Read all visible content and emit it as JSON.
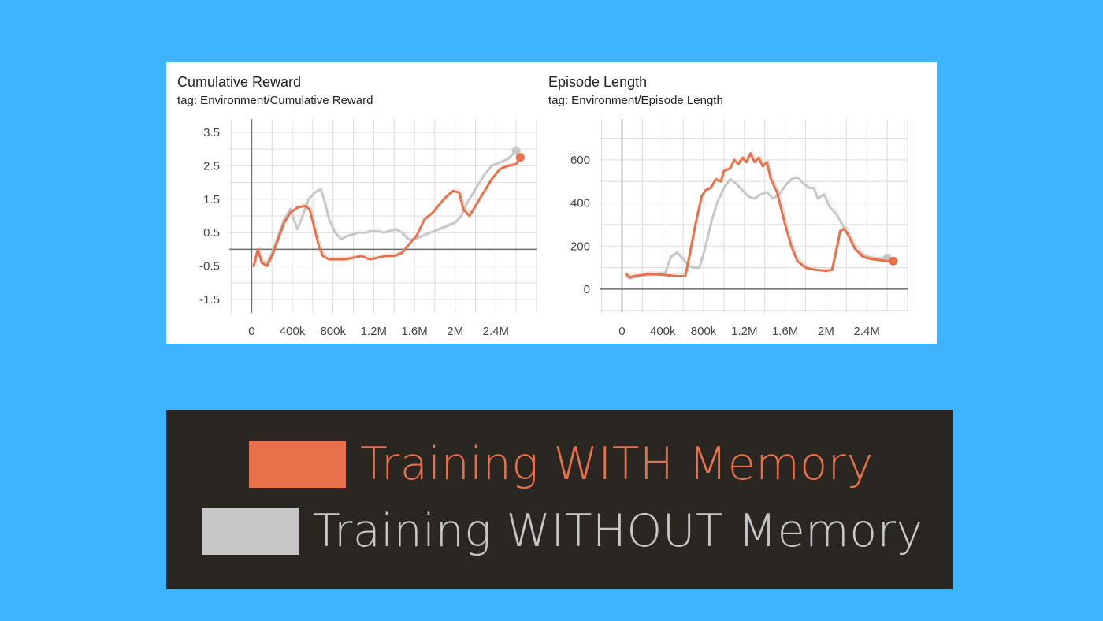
{
  "colors": {
    "background": "#3db4fd",
    "with_memory": "#e8704a",
    "without_memory": "#c7c7c7",
    "legend_bg": "#2a2723"
  },
  "chart_data": [
    {
      "type": "line",
      "title": "Cumulative Reward",
      "subtitle": "tag: Environment/Cumulative Reward",
      "xlabel": "",
      "ylabel": "",
      "xlim": [
        -220000,
        2800000
      ],
      "ylim": [
        -1.9,
        3.9
      ],
      "x_ticks": [
        0,
        400000,
        800000,
        1200000,
        1600000,
        2000000,
        2400000
      ],
      "x_tick_labels": [
        "0",
        "400k",
        "800k",
        "1.2M",
        "1.6M",
        "2M",
        "2.4M"
      ],
      "y_ticks": [
        3.5,
        2.5,
        1.5,
        0.5,
        -0.5,
        -1.5
      ],
      "y_tick_labels": [
        "3.5",
        "2.5",
        "1.5",
        "0.5",
        "-0.5",
        "-1.5"
      ],
      "grid": true,
      "series": [
        {
          "key": "with_memory",
          "x": [
            20000,
            60000,
            100000,
            150000,
            200000,
            260000,
            320000,
            380000,
            450000,
            520000,
            570000,
            620000,
            660000,
            700000,
            760000,
            840000,
            920000,
            1000000,
            1080000,
            1160000,
            1240000,
            1320000,
            1400000,
            1480000,
            1560000,
            1620000,
            1700000,
            1780000,
            1860000,
            1920000,
            1980000,
            2040000,
            2080000,
            2140000,
            2200000,
            2280000,
            2360000,
            2440000,
            2520000,
            2600000,
            2640000
          ],
          "y": [
            -0.5,
            0.0,
            -0.4,
            -0.5,
            -0.2,
            0.3,
            0.8,
            1.1,
            1.25,
            1.3,
            1.2,
            0.6,
            0.1,
            -0.2,
            -0.3,
            -0.3,
            -0.3,
            -0.25,
            -0.2,
            -0.3,
            -0.25,
            -0.2,
            -0.2,
            -0.1,
            0.2,
            0.4,
            0.9,
            1.1,
            1.4,
            1.6,
            1.75,
            1.7,
            1.2,
            1.0,
            1.3,
            1.7,
            2.1,
            2.4,
            2.5,
            2.55,
            2.75
          ]
        },
        {
          "key": "without_memory",
          "x": [
            20000,
            60000,
            100000,
            150000,
            200000,
            260000,
            320000,
            380000,
            450000,
            500000,
            560000,
            620000,
            680000,
            720000,
            760000,
            820000,
            880000,
            940000,
            1000000,
            1060000,
            1120000,
            1180000,
            1240000,
            1300000,
            1360000,
            1420000,
            1480000,
            1540000,
            1600000,
            1680000,
            1760000,
            1840000,
            1920000,
            2000000,
            2060000,
            2120000,
            2200000,
            2280000,
            2360000,
            2440000,
            2520000,
            2600000
          ],
          "y": [
            -0.5,
            0.0,
            -0.4,
            -0.4,
            -0.1,
            0.4,
            0.9,
            1.2,
            0.6,
            1.0,
            1.5,
            1.7,
            1.8,
            1.4,
            0.9,
            0.5,
            0.3,
            0.4,
            0.45,
            0.5,
            0.5,
            0.55,
            0.55,
            0.5,
            0.55,
            0.6,
            0.5,
            0.3,
            0.3,
            0.4,
            0.5,
            0.6,
            0.7,
            0.8,
            1.0,
            1.4,
            1.8,
            2.2,
            2.5,
            2.6,
            2.7,
            2.95
          ]
        }
      ]
    },
    {
      "type": "line",
      "title": "Episode Length",
      "subtitle": "tag: Environment/Episode Length",
      "xlabel": "",
      "ylabel": "",
      "xlim": [
        -220000,
        2800000
      ],
      "ylim": [
        -110,
        790
      ],
      "x_ticks": [
        0,
        400000,
        800000,
        1200000,
        1600000,
        2000000,
        2400000
      ],
      "x_tick_labels": [
        "0",
        "400k",
        "800k",
        "1.2M",
        "1.6M",
        "2M",
        "2.4M"
      ],
      "y_ticks": [
        600,
        400,
        200,
        0
      ],
      "y_tick_labels": [
        "600",
        "400",
        "200",
        "0"
      ],
      "grid": true,
      "series": [
        {
          "key": "with_memory",
          "x": [
            40000,
            80000,
            120000,
            180000,
            250000,
            350000,
            450000,
            550000,
            620000,
            660000,
            720000,
            780000,
            820000,
            870000,
            920000,
            970000,
            1000000,
            1060000,
            1100000,
            1140000,
            1180000,
            1220000,
            1260000,
            1300000,
            1340000,
            1380000,
            1420000,
            1460000,
            1520000,
            1600000,
            1660000,
            1720000,
            1800000,
            1900000,
            2000000,
            2060000,
            2100000,
            2140000,
            2180000,
            2220000,
            2280000,
            2360000,
            2440000,
            2520000,
            2600000,
            2660000
          ],
          "y": [
            70,
            55,
            60,
            65,
            70,
            68,
            65,
            60,
            60,
            150,
            300,
            430,
            460,
            470,
            510,
            500,
            550,
            560,
            600,
            580,
            610,
            590,
            630,
            590,
            610,
            570,
            590,
            510,
            450,
            300,
            200,
            130,
            100,
            90,
            85,
            90,
            180,
            270,
            280,
            250,
            190,
            150,
            140,
            135,
            130,
            130
          ]
        },
        {
          "key": "without_memory",
          "x": [
            40000,
            80000,
            120000,
            180000,
            250000,
            350000,
            420000,
            480000,
            540000,
            600000,
            650000,
            700000,
            760000,
            820000,
            880000,
            940000,
            1000000,
            1060000,
            1120000,
            1180000,
            1240000,
            1300000,
            1360000,
            1420000,
            1480000,
            1540000,
            1600000,
            1660000,
            1720000,
            1780000,
            1840000,
            1880000,
            1920000,
            1980000,
            2040000,
            2100000,
            2160000,
            2220000,
            2300000,
            2400000,
            2500000,
            2600000
          ],
          "y": [
            60,
            50,
            55,
            60,
            65,
            70,
            70,
            150,
            170,
            140,
            110,
            100,
            100,
            200,
            320,
            410,
            470,
            510,
            490,
            460,
            430,
            420,
            440,
            450,
            420,
            440,
            480,
            510,
            520,
            490,
            470,
            470,
            420,
            440,
            380,
            350,
            300,
            250,
            180,
            150,
            140,
            145
          ]
        }
      ]
    }
  ],
  "legend": {
    "items": [
      {
        "key": "with_memory",
        "label": "Training WITH Memory"
      },
      {
        "key": "without_memory",
        "label": "Training WITHOUT Memory"
      }
    ]
  }
}
